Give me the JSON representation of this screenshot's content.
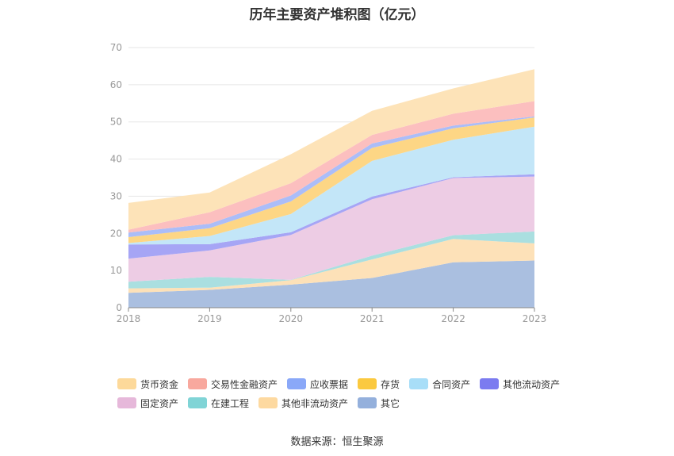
{
  "title": "历年主要资产堆积图（亿元）",
  "source": "数据来源：恒生聚源",
  "chart_data": {
    "type": "area",
    "stacked": true,
    "title": "历年主要资产堆积图（亿元）",
    "categories": [
      "2018",
      "2019",
      "2020",
      "2021",
      "2022",
      "2023"
    ],
    "yticks": [
      "0",
      "10",
      "20",
      "30",
      "40",
      "50",
      "60",
      "70"
    ],
    "ylim": [
      0,
      70
    ],
    "grid": true,
    "legend_position": "bottom",
    "series": [
      {
        "name": "其它",
        "color": "#aabfe0",
        "values": [
          4.0,
          4.8,
          6.2,
          8.0,
          12.2,
          12.7
        ]
      },
      {
        "name": "其他非流动资产",
        "color": "#fde1b8",
        "values": [
          1.2,
          0.6,
          1.2,
          5.0,
          6.3,
          4.6
        ]
      },
      {
        "name": "在建工程",
        "color": "#aadfe0",
        "values": [
          1.8,
          2.9,
          0.1,
          1.0,
          1.0,
          3.2
        ]
      },
      {
        "name": "固定资产",
        "color": "#edcce4",
        "values": [
          6.2,
          7.1,
          12.1,
          15.2,
          15.4,
          14.8
        ]
      },
      {
        "name": "其他流动资产",
        "color": "#a6a5f5",
        "values": [
          3.8,
          1.7,
          0.7,
          0.7,
          0.2,
          0.6
        ]
      },
      {
        "name": "合同资产",
        "color": "#c3e6f8",
        "values": [
          0.4,
          2.2,
          4.9,
          9.6,
          10.1,
          12.8
        ]
      },
      {
        "name": "存货",
        "color": "#fdd685",
        "values": [
          1.6,
          2.1,
          3.4,
          3.5,
          3.1,
          2.5
        ]
      },
      {
        "name": "应收票据",
        "color": "#abbdf8",
        "values": [
          1.2,
          1.2,
          1.6,
          1.2,
          0.7,
          0.3
        ]
      },
      {
        "name": "交易性金融资产",
        "color": "#fcbfbf",
        "values": [
          0.8,
          3.1,
          3.3,
          2.3,
          3.2,
          4.1
        ]
      },
      {
        "name": "货币资金",
        "color": "#fde3b8",
        "values": [
          7.2,
          5.3,
          7.8,
          6.5,
          6.8,
          8.6
        ]
      }
    ],
    "legend": [
      {
        "name": "货币资金",
        "color": "#fdd99a"
      },
      {
        "name": "交易性金融资产",
        "color": "#f8a89e"
      },
      {
        "name": "应收票据",
        "color": "#8aa8f8"
      },
      {
        "name": "存货",
        "color": "#fbc93f"
      },
      {
        "name": "合同资产",
        "color": "#a8def8"
      },
      {
        "name": "其他流动资产",
        "color": "#7b7bf0"
      },
      {
        "name": "固定资产",
        "color": "#e6b8da"
      },
      {
        "name": "在建工程",
        "color": "#80d4d6"
      },
      {
        "name": "其他非流动资产",
        "color": "#fdd9a0"
      },
      {
        "name": "其它",
        "color": "#94b0dc"
      }
    ]
  }
}
